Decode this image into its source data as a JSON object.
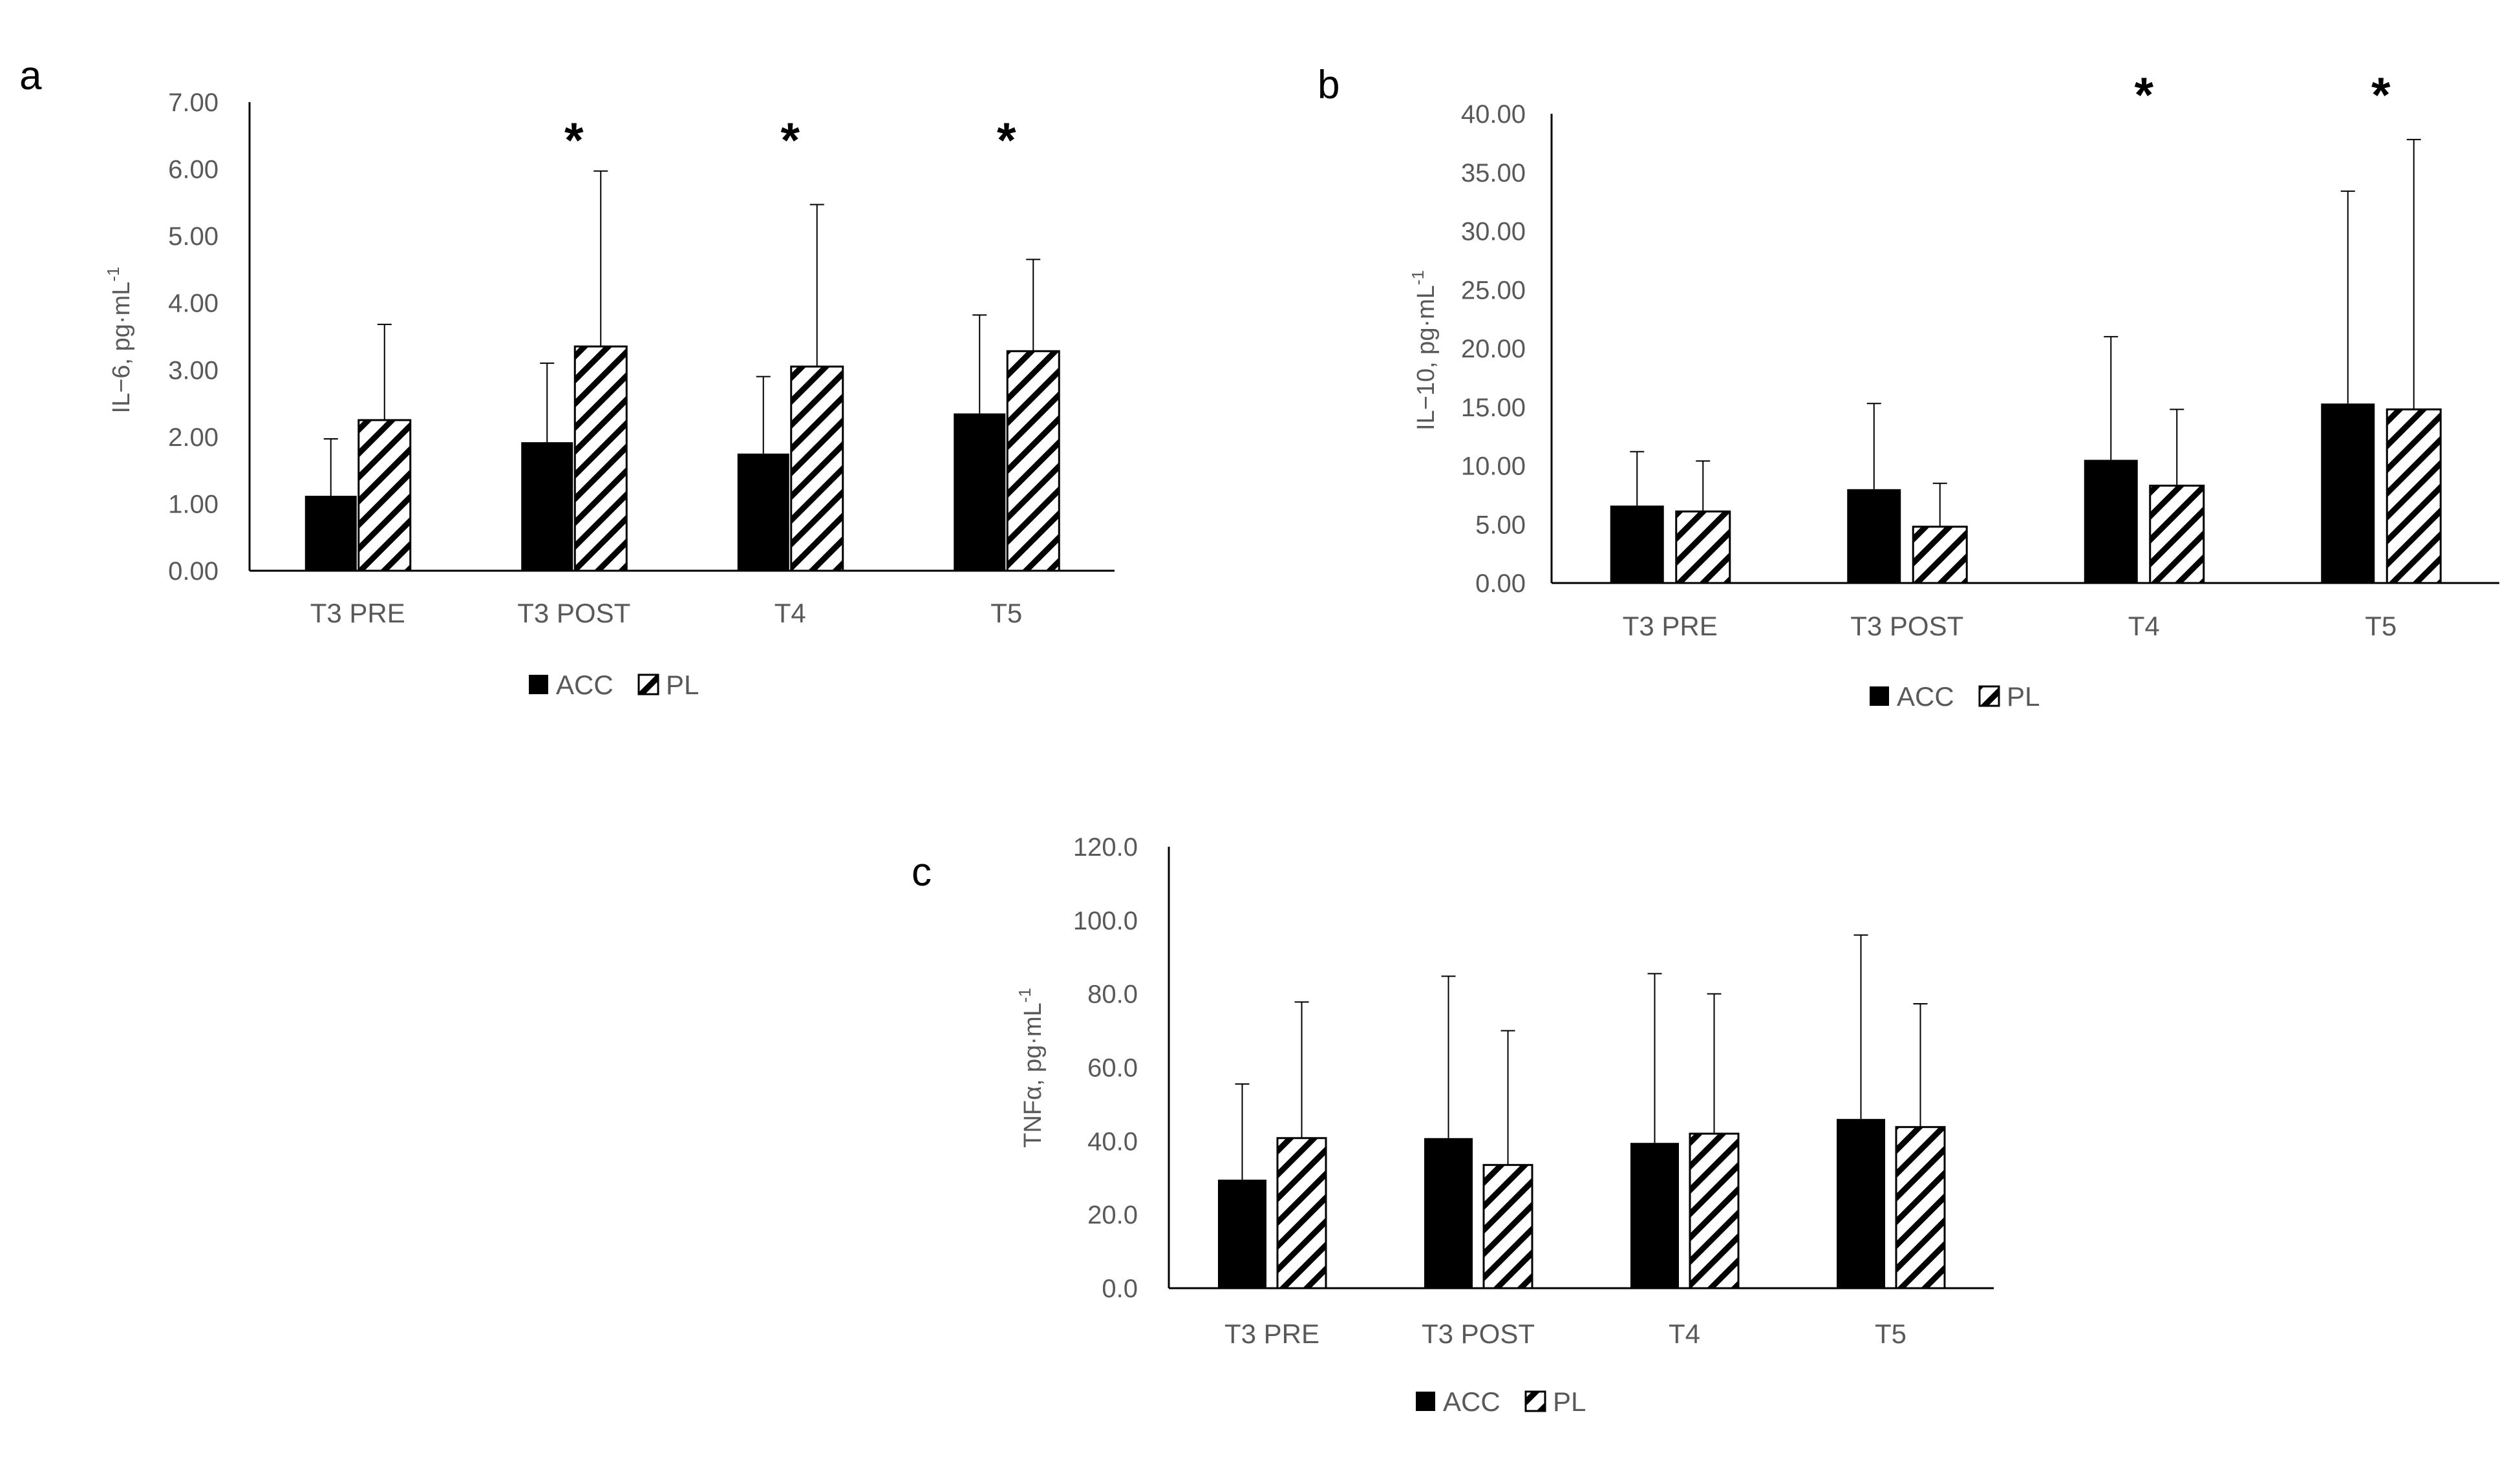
{
  "figure": {
    "background": "#ffffff"
  },
  "colors": {
    "acc": "#000000",
    "pl_hatch": "#000000",
    "axis": "#000000",
    "text": "#595959"
  },
  "chart_data": [
    {
      "type": "bar",
      "panel_label": "a",
      "ylabel_main": "IL−6, pg·mL",
      "ylabel_sup": "-1",
      "ylim": [
        0,
        7
      ],
      "y_ticks": [
        "0.00",
        "1.00",
        "2.00",
        "3.00",
        "4.00",
        "5.00",
        "6.00",
        "7.00"
      ],
      "categories": [
        "T3 PRE",
        "T3 POST",
        "T4",
        "T5"
      ],
      "series": [
        {
          "name": "ACC",
          "pattern": "solid",
          "values": [
            1.12,
            1.92,
            1.75,
            2.35
          ],
          "error": [
            0.85,
            1.18,
            1.15,
            1.47
          ]
        },
        {
          "name": "PL",
          "pattern": "hatched",
          "values": [
            2.25,
            3.35,
            3.05,
            3.28
          ],
          "error": [
            1.43,
            2.62,
            2.42,
            1.37
          ]
        }
      ],
      "significance": [
        "",
        "*",
        "*",
        "*"
      ],
      "legend": [
        "ACC",
        "PL"
      ]
    },
    {
      "type": "bar",
      "panel_label": "b",
      "ylabel_main": "IL−10, pg·mL",
      "ylabel_sup": "-1",
      "ylim": [
        0,
        40
      ],
      "y_ticks": [
        "0.00",
        "5.00",
        "10.00",
        "15.00",
        "20.00",
        "25.00",
        "30.00",
        "35.00",
        "40.00"
      ],
      "categories": [
        "T3 PRE",
        "T3 POST",
        "T4",
        "T5"
      ],
      "series": [
        {
          "name": "ACC",
          "pattern": "solid",
          "values": [
            6.6,
            8.0,
            10.5,
            15.3
          ],
          "error": [
            4.6,
            7.3,
            10.5,
            18.1
          ]
        },
        {
          "name": "PL",
          "pattern": "hatched",
          "values": [
            6.1,
            4.8,
            8.3,
            14.8
          ],
          "error": [
            4.3,
            3.7,
            6.5,
            23.0
          ]
        }
      ],
      "significance": [
        "",
        "",
        "*",
        "*"
      ],
      "legend": [
        "ACC",
        "PL"
      ]
    },
    {
      "type": "bar",
      "panel_label": "c",
      "ylabel_main": "TNFα, pg·mL",
      "ylabel_sup": "-1",
      "ylim": [
        0,
        120
      ],
      "y_ticks": [
        "0.0",
        "20.0",
        "40.0",
        "60.0",
        "80.0",
        "100.0",
        "120.0"
      ],
      "categories": [
        "T3 PRE",
        "T3 POST",
        "T4",
        "T5"
      ],
      "series": [
        {
          "name": "ACC",
          "pattern": "solid",
          "values": [
            29.5,
            40.8,
            39.5,
            46.0
          ],
          "error": [
            26.0,
            44.0,
            46.0,
            50.0
          ]
        },
        {
          "name": "PL",
          "pattern": "hatched",
          "values": [
            40.8,
            33.5,
            42.0,
            43.8
          ],
          "error": [
            37.0,
            36.5,
            38.0,
            33.5
          ]
        }
      ],
      "significance": [
        "",
        "",
        "",
        ""
      ],
      "legend": [
        "ACC",
        "PL"
      ]
    }
  ]
}
